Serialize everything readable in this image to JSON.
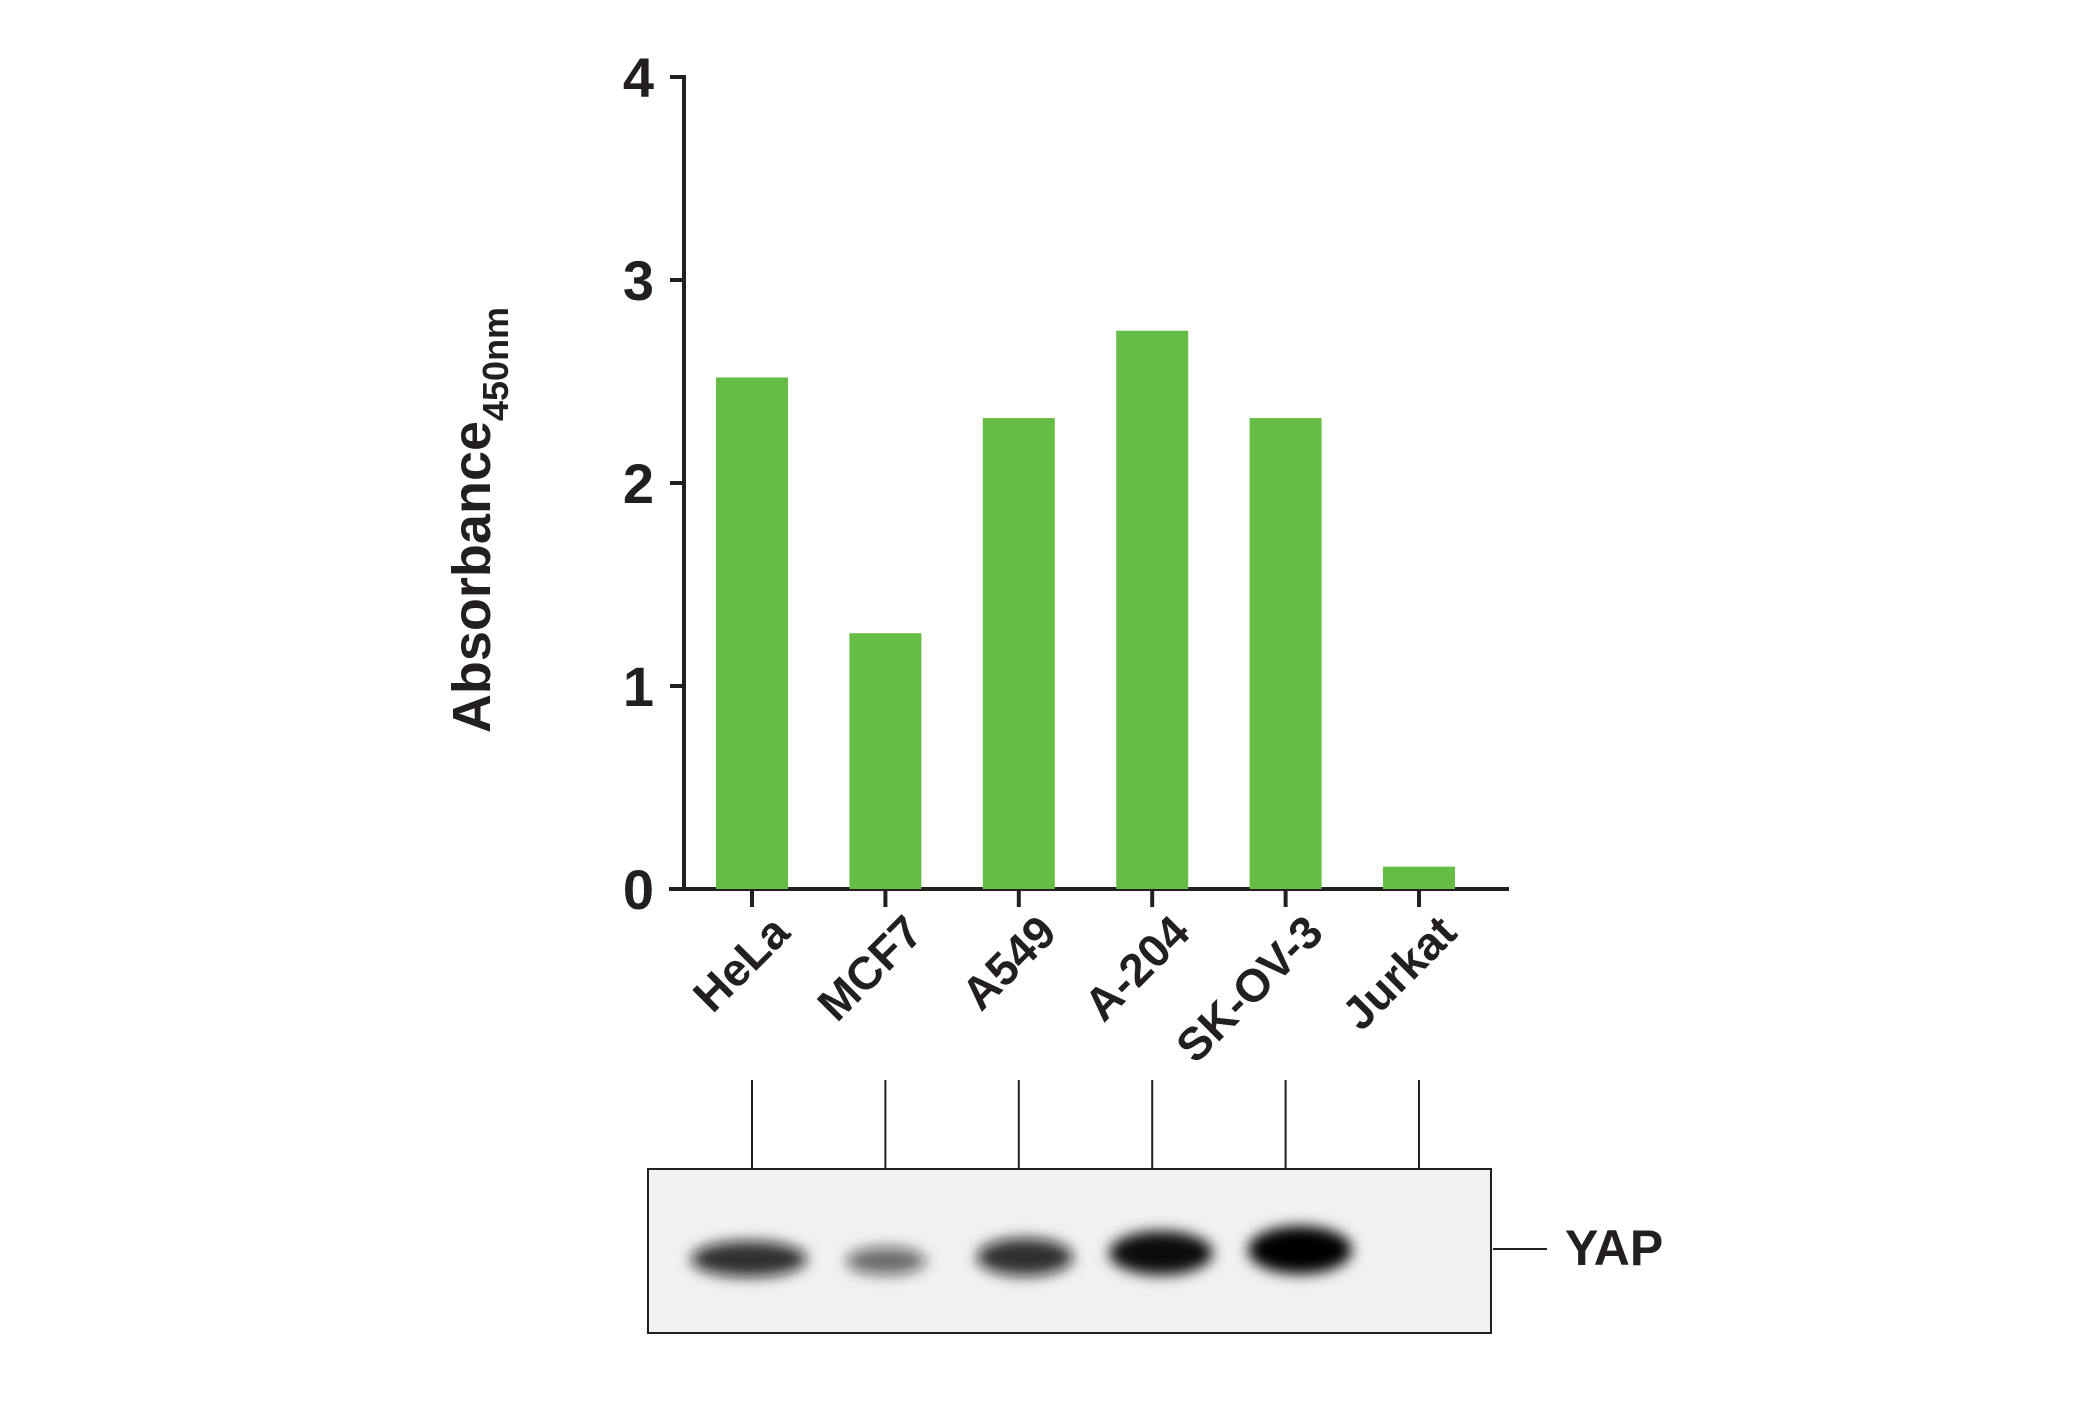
{
  "chart_data": {
    "type": "bar",
    "ylabel": "Absorbance",
    "ylabel_subscript": "450nm",
    "categories": [
      "HeLa",
      "MCF7",
      "A549",
      "A-204",
      "SK-OV-3",
      "Jurkat"
    ],
    "values": [
      2.52,
      1.26,
      2.32,
      2.75,
      2.32,
      0.11
    ],
    "color": "#66bd45",
    "ylim": [
      0,
      4
    ],
    "yticks": [
      0,
      1,
      2,
      3,
      4
    ],
    "grid": false,
    "blot_label": "YAP"
  }
}
